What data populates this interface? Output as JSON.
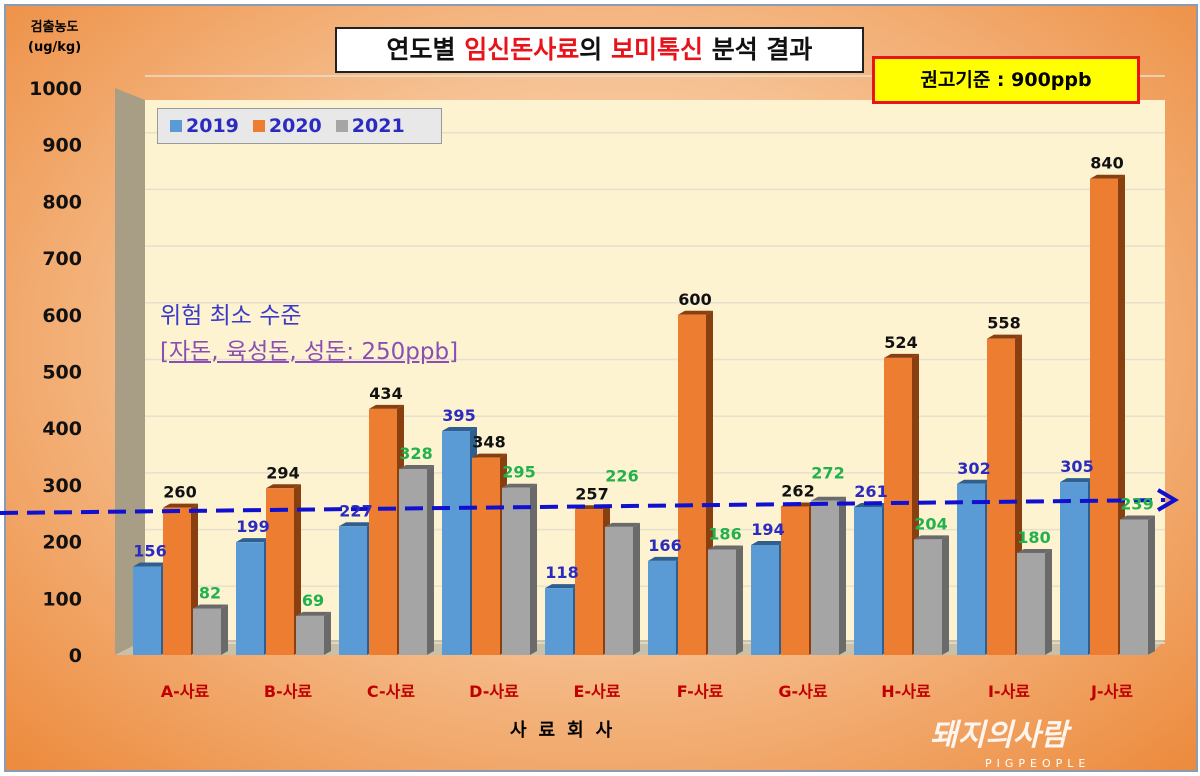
{
  "chart_data": {
    "type": "bar",
    "title_parts": [
      "연도별 ",
      "임신돈사료",
      "의 ",
      "보미톡신",
      " 분석 결과"
    ],
    "ylabel": [
      "검출농도",
      "(ug/kg)"
    ],
    "xlabel": "사료회사",
    "ylim": [
      0,
      1000
    ],
    "yticks": [
      "0",
      "100",
      "200",
      "300",
      "400",
      "500",
      "600",
      "700",
      "800",
      "900",
      "1000"
    ],
    "categories": [
      "A-사료",
      "B-사료",
      "C-사료",
      "D-사료",
      "E-사료",
      "F-사료",
      "G-사료",
      "H-사료",
      "I-사료",
      "J-사료"
    ],
    "series": [
      {
        "name": "2019",
        "color": "#5b9bd5",
        "label_color": "#2b2bc0",
        "values": [
          156,
          199,
          227,
          395,
          118,
          166,
          194,
          261,
          302,
          305
        ]
      },
      {
        "name": "2020",
        "color": "#ed7d31",
        "label_color": "#111111",
        "values": [
          260,
          294,
          434,
          348,
          257,
          600,
          262,
          524,
          558,
          840
        ]
      },
      {
        "name": "2021",
        "color": "#a5a5a5",
        "label_color": "#22b14c",
        "values": [
          82,
          69,
          328,
          295,
          226,
          186,
          272,
          204,
          180,
          239
        ]
      }
    ],
    "legend_position": "top-left",
    "reference_badge": "권고기준 : 900ppb",
    "threshold": {
      "value": 250,
      "label1": "위험 최소 수준",
      "label2": "[자돈, 육성돈, 성돈: 250ppb]"
    }
  },
  "watermark": {
    "text": "돼지와사람",
    "sub": "PIGPEOPLE"
  }
}
